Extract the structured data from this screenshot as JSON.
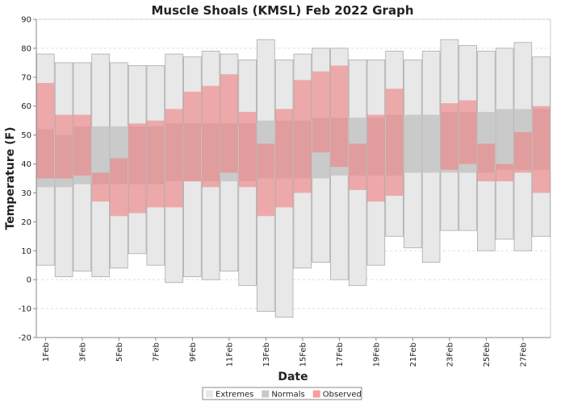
{
  "chart_data": {
    "type": "bar",
    "title": "Muscle Shoals (KMSL) Feb 2022 Graph",
    "xlabel": "Date",
    "ylabel": "Temperature (F)",
    "ylim": [
      -20,
      90
    ],
    "y_ticks": [
      -20,
      -10,
      0,
      10,
      20,
      30,
      40,
      50,
      60,
      70,
      80,
      90
    ],
    "grid": true,
    "legend_position": "bottom-center",
    "x": [
      "1Feb",
      "2Feb",
      "3Feb",
      "4Feb",
      "5Feb",
      "6Feb",
      "7Feb",
      "8Feb",
      "9Feb",
      "10Feb",
      "11Feb",
      "12Feb",
      "13Feb",
      "14Feb",
      "15Feb",
      "16Feb",
      "17Feb",
      "18Feb",
      "19Feb",
      "20Feb",
      "21Feb",
      "22Feb",
      "23Feb",
      "24Feb",
      "25Feb",
      "26Feb",
      "27Feb",
      "28Feb"
    ],
    "x_tick_labels": [
      "1Feb",
      "3Feb",
      "5Feb",
      "7Feb",
      "9Feb",
      "11Feb",
      "13Feb",
      "15Feb",
      "17Feb",
      "19Feb",
      "21Feb",
      "23Feb",
      "25Feb",
      "27Feb"
    ],
    "series": [
      {
        "name": "Extremes",
        "color": "#e8e8e8",
        "high": [
          78,
          75,
          75,
          78,
          75,
          74,
          74,
          78,
          77,
          79,
          78,
          76,
          83,
          76,
          78,
          80,
          80,
          76,
          76,
          79,
          76,
          79,
          83,
          81,
          79,
          80,
          82,
          77
        ],
        "low": [
          5,
          1,
          3,
          1,
          4,
          9,
          5,
          -1,
          1,
          0,
          3,
          -2,
          -11,
          -13,
          4,
          6,
          0,
          -2,
          5,
          15,
          11,
          6,
          17,
          17,
          10,
          14,
          10,
          15
        ]
      },
      {
        "name": "Normals",
        "color": "#c8c8c8",
        "high": [
          52,
          50,
          53,
          53,
          53,
          53,
          53,
          54,
          54,
          54,
          54,
          54,
          55,
          55,
          55,
          56,
          56,
          56,
          56,
          57,
          57,
          57,
          58,
          58,
          58,
          59,
          59,
          59
        ],
        "low": [
          32,
          32,
          33,
          33,
          33,
          33,
          33,
          34,
          34,
          34,
          34,
          34,
          35,
          35,
          35,
          35,
          36,
          36,
          36,
          36,
          37,
          37,
          37,
          37,
          37,
          38,
          38,
          38
        ]
      },
      {
        "name": "Observed",
        "color": "#f07f7f",
        "high": [
          68,
          57,
          57,
          37,
          42,
          54,
          55,
          59,
          65,
          67,
          71,
          58,
          47,
          59,
          69,
          72,
          74,
          47,
          57,
          66,
          null,
          null,
          61,
          62,
          47,
          40,
          51,
          60
        ],
        "low": [
          35,
          null,
          36,
          27,
          22,
          23,
          25,
          25,
          34,
          32,
          37,
          32,
          22,
          25,
          30,
          44,
          39,
          31,
          27,
          29,
          null,
          null,
          38,
          40,
          34,
          34,
          37,
          30
        ]
      }
    ]
  }
}
